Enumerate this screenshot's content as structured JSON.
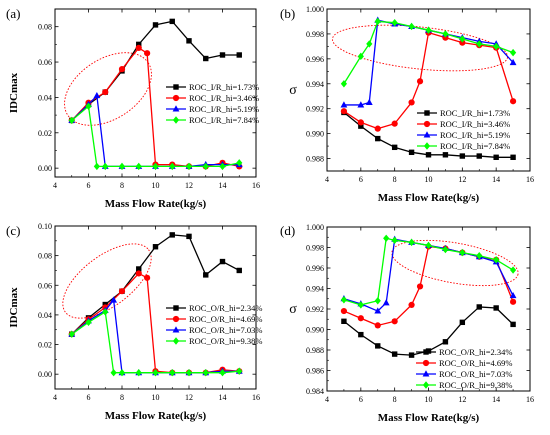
{
  "chart_data": [
    {
      "panel_label": "(a)",
      "type": "line",
      "xlabel": "Mass Flow Rate(kg/s)",
      "ylabel": "IDCmax",
      "xlim": [
        4,
        16
      ],
      "ylim": [
        -0.005,
        0.09
      ],
      "x_ticks": [
        4,
        6,
        8,
        10,
        12,
        14,
        16
      ],
      "y_ticks": [
        0.0,
        0.02,
        0.04,
        0.06,
        0.08
      ],
      "y_tick_labels": [
        "0.00",
        "0.02",
        "0.04",
        "0.06",
        "0.08"
      ],
      "legend_position": "center-right",
      "series": [
        {
          "name": "ROC_I/R_hi=1.73%",
          "color": "#000000",
          "marker": "square",
          "x": [
            5,
            6,
            7,
            8,
            9,
            10,
            11,
            12,
            13,
            14,
            15
          ],
          "y": [
            0.027,
            0.036,
            0.043,
            0.055,
            0.07,
            0.081,
            0.083,
            0.072,
            0.062,
            0.064,
            0.064
          ]
        },
        {
          "name": "ROC_I/R_hi=3.46%",
          "color": "#ff0000",
          "marker": "circle",
          "x": [
            5,
            6,
            7,
            8,
            9,
            9.5,
            10,
            11,
            12,
            13,
            14,
            15
          ],
          "y": [
            0.027,
            0.037,
            0.043,
            0.056,
            0.068,
            0.065,
            0.002,
            0.002,
            0.001,
            0.001,
            0.003,
            0.001
          ]
        },
        {
          "name": "ROC_I/R_hi=5.19%",
          "color": "#0000ff",
          "marker": "triangle",
          "x": [
            5,
            6,
            6.5,
            7,
            8,
            9,
            10,
            11,
            12,
            13,
            14,
            15
          ],
          "y": [
            0.027,
            0.036,
            0.041,
            0.001,
            0.001,
            0.001,
            0.001,
            0.001,
            0.001,
            0.002,
            0.002,
            0.002
          ]
        },
        {
          "name": "ROC_I/R_hi=7.84%",
          "color": "#00ff00",
          "marker": "diamond",
          "x": [
            5,
            6,
            6.5,
            7,
            8,
            9,
            10,
            11,
            12,
            13,
            14,
            15
          ],
          "y": [
            0.027,
            0.035,
            0.001,
            0.001,
            0.001,
            0.001,
            0.001,
            0.001,
            0.001,
            0.001,
            0.001,
            0.003
          ]
        }
      ]
    },
    {
      "panel_label": "(b)",
      "type": "line",
      "xlabel": "Mass Flow Rate(kg/s)",
      "ylabel": "σ",
      "xlim": [
        4,
        16
      ],
      "ylim": [
        0.987,
        1.0
      ],
      "x_ticks": [
        4,
        6,
        8,
        10,
        12,
        14,
        16
      ],
      "y_ticks": [
        0.988,
        0.99,
        0.992,
        0.994,
        0.996,
        0.998,
        1.0
      ],
      "y_tick_labels": [
        "0.988",
        "0.990",
        "0.992",
        "0.994",
        "0.996",
        "0.998",
        "1.000"
      ],
      "legend_position": "center-right",
      "series": [
        {
          "name": "ROC_I/R_hi=1.73%",
          "color": "#000000",
          "marker": "square",
          "x": [
            5,
            6,
            7,
            8,
            9,
            10,
            11,
            12,
            13,
            14,
            15
          ],
          "y": [
            0.9917,
            0.9906,
            0.9896,
            0.9889,
            0.9885,
            0.9883,
            0.9883,
            0.9882,
            0.9882,
            0.9881,
            0.9881
          ]
        },
        {
          "name": "ROC_I/R_hi=3.46%",
          "color": "#ff0000",
          "marker": "circle",
          "x": [
            5,
            6,
            7,
            8,
            9,
            9.5,
            10,
            11,
            12,
            13,
            14,
            15
          ],
          "y": [
            0.9918,
            0.9909,
            0.9904,
            0.9908,
            0.9925,
            0.9942,
            0.9981,
            0.9977,
            0.9973,
            0.9971,
            0.9969,
            0.9926
          ]
        },
        {
          "name": "ROC_I/R_hi=5.19%",
          "color": "#0000ff",
          "marker": "triangle",
          "x": [
            5,
            6,
            6.5,
            7,
            8,
            9,
            10,
            11,
            12,
            13,
            14,
            15
          ],
          "y": [
            0.9923,
            0.9923,
            0.9925,
            0.9991,
            0.9988,
            0.9986,
            0.9983,
            0.998,
            0.9977,
            0.9974,
            0.9972,
            0.9957
          ]
        },
        {
          "name": "ROC_I/R_hi=7.84%",
          "color": "#00ff00",
          "marker": "diamond",
          "x": [
            5,
            6,
            6.5,
            7,
            8,
            9,
            10,
            11,
            12,
            13,
            14,
            15
          ],
          "y": [
            0.994,
            0.9962,
            0.9972,
            0.999,
            0.9989,
            0.9986,
            0.9983,
            0.998,
            0.9976,
            0.9972,
            0.997,
            0.9965
          ]
        }
      ]
    },
    {
      "panel_label": "(c)",
      "type": "line",
      "xlabel": "Mass Flow Rate(kg/s)",
      "ylabel": "IDCmax",
      "xlim": [
        4,
        16
      ],
      "ylim": [
        -0.01,
        0.1
      ],
      "x_ticks": [
        4,
        6,
        8,
        10,
        12,
        14,
        16
      ],
      "y_ticks": [
        0.0,
        0.02,
        0.04,
        0.06,
        0.08,
        0.1
      ],
      "y_tick_labels": [
        "0.00",
        "0.02",
        "0.04",
        "0.06",
        "0.08",
        "0.10"
      ],
      "legend_position": "center-right",
      "series": [
        {
          "name": "ROC_O/R_hi=2.34%",
          "color": "#000000",
          "marker": "square",
          "x": [
            5,
            6,
            7,
            8,
            9,
            10,
            11,
            12,
            13,
            14,
            15
          ],
          "y": [
            0.027,
            0.038,
            0.047,
            0.056,
            0.071,
            0.086,
            0.094,
            0.093,
            0.067,
            0.076,
            0.07
          ]
        },
        {
          "name": "ROC_O/R_hi=4.69%",
          "color": "#ff0000",
          "marker": "circle",
          "x": [
            5,
            6,
            7,
            8,
            9,
            9.5,
            10,
            11,
            12,
            13,
            14,
            15
          ],
          "y": [
            0.027,
            0.037,
            0.045,
            0.056,
            0.068,
            0.065,
            0.002,
            0.001,
            0.001,
            0.001,
            0.003,
            0.002
          ]
        },
        {
          "name": "ROC_O/R_hi=7.03%",
          "color": "#0000ff",
          "marker": "triangle",
          "x": [
            5,
            6,
            7,
            7.5,
            8,
            9,
            10,
            11,
            12,
            13,
            14,
            15
          ],
          "y": [
            0.027,
            0.036,
            0.043,
            0.05,
            0.001,
            0.001,
            0.001,
            0.001,
            0.001,
            0.001,
            0.002,
            0.002
          ]
        },
        {
          "name": "ROC_O/R_hi=9.38%",
          "color": "#00ff00",
          "marker": "diamond",
          "x": [
            5,
            6,
            7,
            7.5,
            8,
            9,
            10,
            11,
            12,
            13,
            14,
            15
          ],
          "y": [
            0.027,
            0.035,
            0.042,
            0.001,
            0.001,
            0.001,
            0.001,
            0.001,
            0.001,
            0.001,
            0.001,
            0.002
          ]
        }
      ]
    },
    {
      "panel_label": "(d)",
      "type": "line",
      "xlabel": "Mass Flow Rate(kg/s)",
      "ylabel": "σ",
      "xlim": [
        4,
        16
      ],
      "ylim": [
        0.984,
        1.0
      ],
      "x_ticks": [
        4,
        6,
        8,
        10,
        12,
        14,
        16
      ],
      "y_ticks": [
        0.984,
        0.986,
        0.988,
        0.99,
        0.992,
        0.994,
        0.996,
        0.998,
        1.0
      ],
      "y_tick_labels": [
        "0.984",
        "0.986",
        "0.988",
        "0.990",
        "0.992",
        "0.994",
        "0.996",
        "0.998",
        "1.000"
      ],
      "legend_position": "bottom-right",
      "series": [
        {
          "name": "ROC_O/R_hi=2.34%",
          "color": "#000000",
          "marker": "square",
          "x": [
            5,
            6,
            7,
            8,
            9,
            10,
            11,
            12,
            13,
            14,
            15
          ],
          "y": [
            0.9908,
            0.9895,
            0.9884,
            0.9876,
            0.9875,
            0.9879,
            0.9888,
            0.9907,
            0.9922,
            0.9921,
            0.9905
          ]
        },
        {
          "name": "ROC_O/R_hi=4.69%",
          "color": "#ff0000",
          "marker": "circle",
          "x": [
            5,
            6,
            7,
            8,
            9,
            9.5,
            10,
            11,
            12,
            13,
            14,
            15
          ],
          "y": [
            0.9918,
            0.9911,
            0.9904,
            0.9908,
            0.9924,
            0.9942,
            0.9981,
            0.9979,
            0.9975,
            0.9971,
            0.9968,
            0.9927
          ]
        },
        {
          "name": "ROC_O/R_hi=7.03%",
          "color": "#0000ff",
          "marker": "triangle",
          "x": [
            5,
            6,
            7,
            7.5,
            8,
            9,
            10,
            11,
            12,
            13,
            14,
            15
          ],
          "y": [
            0.993,
            0.9925,
            0.9918,
            0.9926,
            0.9988,
            0.9985,
            0.9982,
            0.9979,
            0.9975,
            0.9971,
            0.9966,
            0.9933
          ]
        },
        {
          "name": "ROC_O/R_hi=9.38%",
          "color": "#00ff00",
          "marker": "diamond",
          "x": [
            5,
            6,
            7,
            7.5,
            8,
            9,
            10,
            11,
            12,
            13,
            14,
            15
          ],
          "y": [
            0.9929,
            0.9924,
            0.9928,
            0.9989,
            0.9987,
            0.9985,
            0.9982,
            0.9978,
            0.9975,
            0.9972,
            0.9968,
            0.9958
          ]
        }
      ]
    }
  ]
}
